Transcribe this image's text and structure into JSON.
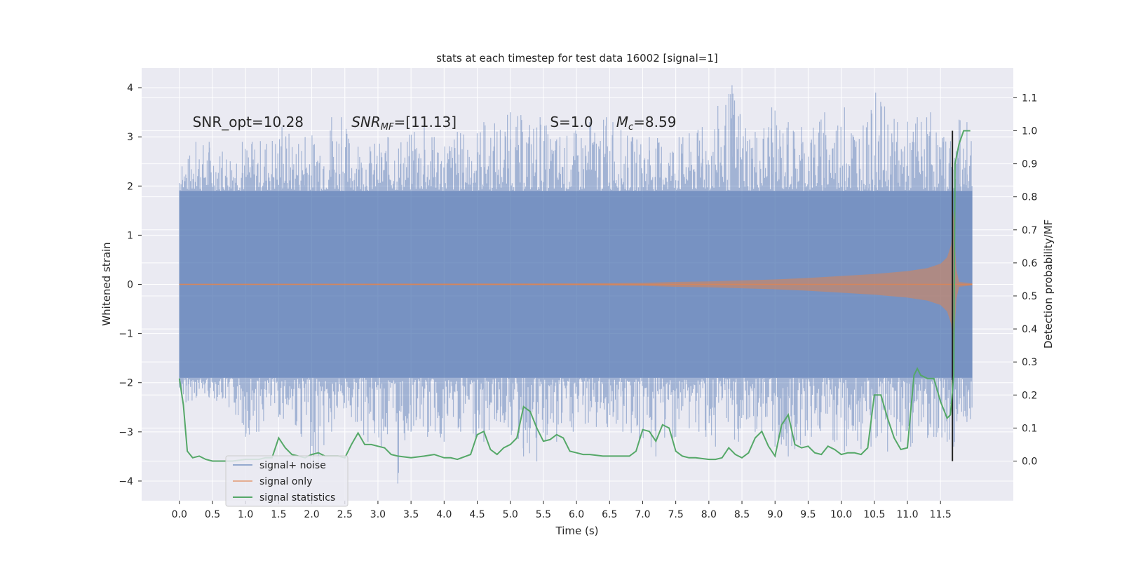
{
  "chart_data": {
    "type": "line",
    "title": "stats at each timestep for test data 16002 [signal=1]",
    "xlabel": "Time (s)",
    "ylabel": "Whitened strain",
    "y2label": "Detection probability/MF",
    "xlim": [
      -0.57,
      12.6
    ],
    "ylim": [
      -4.4,
      4.4
    ],
    "y2lim": [
      -0.12,
      1.19
    ],
    "x_ticks": [
      0.0,
      0.5,
      1.0,
      1.5,
      2.0,
      2.5,
      3.0,
      3.5,
      4.0,
      4.5,
      5.0,
      5.5,
      6.0,
      6.5,
      7.0,
      7.5,
      8.0,
      8.5,
      9.0,
      9.5,
      10.0,
      10.5,
      11.0,
      11.5
    ],
    "x_tick_labels": [
      "0.0",
      "0.5",
      "1.0",
      "1.5",
      "2.0",
      "2.5",
      "3.0",
      "3.5",
      "4.0",
      "4.5",
      "5.0",
      "5.5",
      "6.0",
      "6.5",
      "7.0",
      "7.5",
      "8.0",
      "8.5",
      "9.0",
      "9.5",
      "10.0",
      "10.5",
      "11.0",
      "11.5"
    ],
    "y_ticks": [
      -4,
      -3,
      -2,
      -1,
      0,
      1,
      2,
      3,
      4
    ],
    "y_tick_labels": [
      "−4",
      "−3",
      "−2",
      "−1",
      "0",
      "1",
      "2",
      "3",
      "4"
    ],
    "y2_ticks": [
      0.0,
      0.1,
      0.2,
      0.3,
      0.4,
      0.5,
      0.6,
      0.7,
      0.8,
      0.9,
      1.0,
      1.1
    ],
    "y2_tick_labels": [
      "0.0",
      "0.1",
      "0.2",
      "0.3",
      "0.4",
      "0.5",
      "0.6",
      "0.7",
      "0.8",
      "0.9",
      "1.0",
      "1.1"
    ],
    "grid": true,
    "legend_position": "lower-left",
    "colors": {
      "noise": "#4c72b0",
      "signal": "#dd8452",
      "stats": "#55a868",
      "background": "#eaeaf2",
      "grid": "#ffffff",
      "marker_line": "#222222"
    },
    "marker_line_x": 11.68,
    "annotations": [
      {
        "text": "SNR_opt=10.28",
        "x": 0.2,
        "y": 3.2
      },
      {
        "text": "SNR_MF=[11.13]",
        "x": 2.6,
        "y": 3.2
      },
      {
        "text": "S=1.0",
        "x": 5.6,
        "y": 3.2
      },
      {
        "text": "M_c=8.59",
        "x": 6.6,
        "y": 3.2
      }
    ],
    "series": [
      {
        "name": "signal+ noise",
        "axis": "left",
        "style": "dense noise band",
        "x_range": [
          0.0,
          11.98
        ],
        "core_band": [
          -1.9,
          1.9
        ],
        "peaks_up": [
          [
            0.04,
            2.4
          ],
          [
            0.25,
            2.9
          ],
          [
            0.45,
            2.9
          ],
          [
            0.65,
            2.7
          ],
          [
            0.95,
            2.9
          ],
          [
            1.1,
            2.9
          ],
          [
            1.55,
            3.2
          ],
          [
            1.9,
            3.0
          ],
          [
            2.3,
            3.4
          ],
          [
            2.45,
            3.4
          ],
          [
            2.7,
            2.8
          ],
          [
            3.15,
            3.0
          ],
          [
            3.55,
            3.1
          ],
          [
            3.7,
            3.2
          ],
          [
            3.85,
            3.0
          ],
          [
            4.2,
            3.1
          ],
          [
            4.6,
            3.3
          ],
          [
            5.0,
            3.5
          ],
          [
            5.45,
            3.4
          ],
          [
            5.75,
            3.0
          ],
          [
            6.2,
            3.3
          ],
          [
            6.45,
            3.4
          ],
          [
            6.55,
            3.3
          ],
          [
            6.85,
            3.0
          ],
          [
            7.1,
            3.0
          ],
          [
            7.55,
            3.0
          ],
          [
            7.9,
            3.2
          ],
          [
            8.35,
            4.05
          ],
          [
            8.7,
            3.1
          ],
          [
            8.95,
            3.6
          ],
          [
            9.2,
            3.3
          ],
          [
            9.4,
            3.2
          ],
          [
            9.75,
            3.5
          ],
          [
            10.05,
            3.6
          ],
          [
            10.4,
            3.3
          ],
          [
            10.52,
            3.9
          ],
          [
            10.85,
            3.3
          ],
          [
            11.15,
            3.4
          ],
          [
            11.35,
            3.5
          ],
          [
            11.55,
            3.0
          ],
          [
            11.78,
            3.35
          ],
          [
            11.9,
            3.3
          ]
        ],
        "peaks_down": [
          [
            0.1,
            -2.4
          ],
          [
            0.45,
            -2.3
          ],
          [
            0.75,
            -2.5
          ],
          [
            1.0,
            -3.1
          ],
          [
            1.2,
            -3.0
          ],
          [
            1.5,
            -2.7
          ],
          [
            1.85,
            -3.1
          ],
          [
            1.98,
            -3.6
          ],
          [
            2.1,
            -3.7
          ],
          [
            2.3,
            -3.0
          ],
          [
            2.6,
            -2.7
          ],
          [
            2.85,
            -3.2
          ],
          [
            3.05,
            -3.3
          ],
          [
            3.3,
            -4.05
          ],
          [
            3.5,
            -3.0
          ],
          [
            3.75,
            -3.1
          ],
          [
            4.0,
            -3.2
          ],
          [
            4.25,
            -3.0
          ],
          [
            4.6,
            -3.2
          ],
          [
            4.85,
            -2.8
          ],
          [
            5.2,
            -3.5
          ],
          [
            5.4,
            -3.6
          ],
          [
            5.7,
            -3.2
          ],
          [
            5.95,
            -3.0
          ],
          [
            6.3,
            -2.9
          ],
          [
            6.7,
            -3.0
          ],
          [
            6.95,
            -3.2
          ],
          [
            7.2,
            -3.5
          ],
          [
            7.5,
            -3.1
          ],
          [
            7.85,
            -3.0
          ],
          [
            8.1,
            -3.3
          ],
          [
            8.45,
            -3.2
          ],
          [
            8.8,
            -3.0
          ],
          [
            9.0,
            -3.3
          ],
          [
            9.2,
            -3.5
          ],
          [
            9.55,
            -3.1
          ],
          [
            9.9,
            -3.2
          ],
          [
            10.05,
            -3.4
          ],
          [
            10.3,
            -3.35
          ],
          [
            10.45,
            -3.3
          ],
          [
            10.7,
            -3.4
          ],
          [
            10.9,
            -3.2
          ],
          [
            11.05,
            -3.3
          ],
          [
            11.4,
            -3.1
          ],
          [
            11.6,
            -3.2
          ],
          [
            11.7,
            -3.3
          ],
          [
            11.9,
            -2.8
          ]
        ]
      },
      {
        "name": "signal only",
        "axis": "left",
        "style": "chirp envelope",
        "x_range": [
          0.0,
          11.98
        ],
        "envelope": [
          [
            0.0,
            0.01
          ],
          [
            4.0,
            0.015
          ],
          [
            6.0,
            0.02
          ],
          [
            7.0,
            0.03
          ],
          [
            7.5,
            0.05
          ],
          [
            8.0,
            0.06
          ],
          [
            8.5,
            0.08
          ],
          [
            9.0,
            0.1
          ],
          [
            9.5,
            0.13
          ],
          [
            10.0,
            0.17
          ],
          [
            10.5,
            0.21
          ],
          [
            11.0,
            0.27
          ],
          [
            11.3,
            0.33
          ],
          [
            11.5,
            0.42
          ],
          [
            11.6,
            0.55
          ],
          [
            11.66,
            0.8
          ],
          [
            11.7,
            1.5
          ],
          [
            11.72,
            0.8
          ],
          [
            11.74,
            0.3
          ],
          [
            11.78,
            0.05
          ],
          [
            11.98,
            0.02
          ]
        ]
      },
      {
        "name": "signal statistics",
        "axis": "right",
        "x": [
          0.0,
          0.06,
          0.12,
          0.2,
          0.3,
          0.4,
          0.5,
          0.6,
          0.8,
          1.0,
          1.2,
          1.3,
          1.4,
          1.5,
          1.6,
          1.7,
          1.8,
          1.9,
          2.0,
          2.1,
          2.2,
          2.3,
          2.4,
          2.5,
          2.6,
          2.7,
          2.8,
          2.9,
          3.0,
          3.1,
          3.2,
          3.3,
          3.5,
          3.7,
          3.85,
          4.0,
          4.1,
          4.2,
          4.4,
          4.5,
          4.6,
          4.7,
          4.8,
          4.9,
          5.0,
          5.1,
          5.2,
          5.3,
          5.4,
          5.5,
          5.6,
          5.7,
          5.8,
          5.9,
          6.0,
          6.1,
          6.2,
          6.4,
          6.6,
          6.8,
          6.9,
          7.0,
          7.1,
          7.2,
          7.3,
          7.4,
          7.5,
          7.6,
          7.7,
          7.8,
          8.0,
          8.1,
          8.2,
          8.3,
          8.4,
          8.5,
          8.6,
          8.7,
          8.8,
          8.9,
          9.0,
          9.1,
          9.2,
          9.3,
          9.4,
          9.5,
          9.6,
          9.7,
          9.8,
          9.9,
          10.0,
          10.1,
          10.2,
          10.3,
          10.4,
          10.5,
          10.6,
          10.7,
          10.8,
          10.9,
          11.0,
          11.1,
          11.15,
          11.2,
          11.3,
          11.4,
          11.5,
          11.6,
          11.65,
          11.7,
          11.72,
          11.78,
          11.85,
          11.95
        ],
        "values": [
          0.25,
          0.17,
          0.03,
          0.01,
          0.015,
          0.005,
          0.0,
          0.0,
          0.0,
          0.005,
          0.005,
          0.01,
          0.01,
          0.07,
          0.04,
          0.02,
          0.015,
          0.01,
          0.02,
          0.025,
          0.015,
          0.015,
          0.015,
          0.01,
          0.05,
          0.085,
          0.05,
          0.05,
          0.045,
          0.04,
          0.02,
          0.015,
          0.01,
          0.015,
          0.02,
          0.01,
          0.01,
          0.005,
          0.02,
          0.08,
          0.09,
          0.035,
          0.02,
          0.04,
          0.05,
          0.07,
          0.165,
          0.15,
          0.1,
          0.06,
          0.065,
          0.08,
          0.07,
          0.03,
          0.025,
          0.02,
          0.02,
          0.015,
          0.015,
          0.015,
          0.03,
          0.095,
          0.09,
          0.06,
          0.11,
          0.1,
          0.03,
          0.015,
          0.01,
          0.01,
          0.005,
          0.005,
          0.01,
          0.04,
          0.02,
          0.01,
          0.025,
          0.07,
          0.09,
          0.045,
          0.015,
          0.11,
          0.14,
          0.05,
          0.04,
          0.045,
          0.025,
          0.02,
          0.045,
          0.035,
          0.02,
          0.025,
          0.025,
          0.02,
          0.04,
          0.2,
          0.2,
          0.13,
          0.07,
          0.035,
          0.04,
          0.26,
          0.28,
          0.26,
          0.25,
          0.25,
          0.18,
          0.13,
          0.14,
          0.26,
          0.9,
          0.96,
          1.0,
          1.0
        ]
      }
    ]
  }
}
